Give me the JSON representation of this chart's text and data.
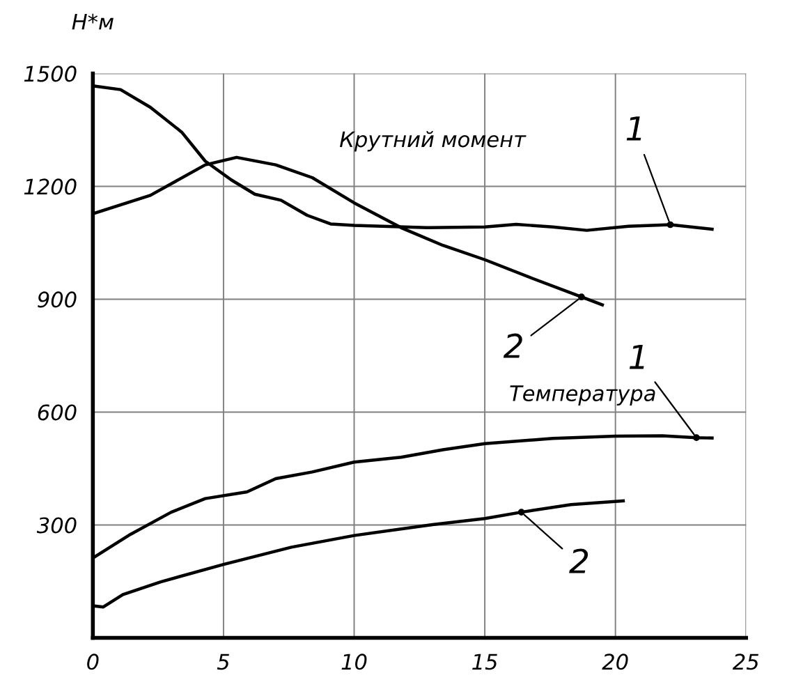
{
  "chart_data": {
    "type": "line",
    "ylabel": "Н*м",
    "xlim": [
      0,
      25
    ],
    "ylim": [
      0,
      1500
    ],
    "xticks": [
      0,
      5,
      10,
      15,
      20,
      25
    ],
    "yticks": [
      300,
      600,
      900,
      1200,
      1500
    ],
    "grid": true,
    "marker": "none",
    "line_style": "solid",
    "series": [
      {
        "color": "#000000",
        "x": [
          0,
          1.06,
          2.2,
          3.4,
          4.3,
          5.3,
          6.2,
          7.2,
          8.2,
          9.1,
          10,
          12.8,
          15,
          16.2,
          17.6,
          18.9,
          20.5,
          22.1,
          23.7
        ],
        "values": [
          1467,
          1457,
          1410,
          1344,
          1267,
          1217,
          1179,
          1163,
          1123,
          1100,
          1096,
          1090,
          1092,
          1099,
          1092,
          1083,
          1094,
          1098,
          1086
        ]
      },
      {
        "color": "#000000",
        "x": [
          0,
          2.2,
          4.3,
          5.5,
          7,
          8.4,
          10,
          11.8,
          13.4,
          15,
          16.8,
          18.7,
          19.5
        ],
        "values": [
          1127,
          1176,
          1257,
          1277,
          1257,
          1223,
          1156,
          1090,
          1043,
          1005,
          956,
          906,
          885
        ]
      },
      {
        "color": "#000000",
        "x": [
          0,
          1.44,
          3,
          4.3,
          5.9,
          7,
          8.4,
          10,
          11.8,
          13.4,
          15,
          17.6,
          20,
          21.8,
          23.1,
          23.7
        ],
        "values": [
          212,
          275,
          334,
          370,
          388,
          423,
          441,
          467,
          480,
          500,
          516,
          530,
          536,
          537,
          532,
          531
        ]
      },
      {
        "color": "#000000",
        "x": [
          0,
          0.4,
          1.15,
          2.6,
          5,
          7.6,
          10,
          13,
          15,
          16.4,
          18.3,
          20.3
        ],
        "values": [
          85,
          82,
          115,
          149,
          195,
          241,
          272,
          301,
          317,
          334,
          354,
          364
        ]
      }
    ],
    "annotations": [
      "Крутний момент",
      "Температура",
      {
        "text": "1",
        "x": 22.1,
        "y": 1098
      },
      {
        "text": "2",
        "x": 18.7,
        "y": 906
      },
      {
        "text": "1",
        "x": 23.1,
        "y": 532
      },
      {
        "text": "2",
        "x": 16.4,
        "y": 334
      }
    ]
  }
}
